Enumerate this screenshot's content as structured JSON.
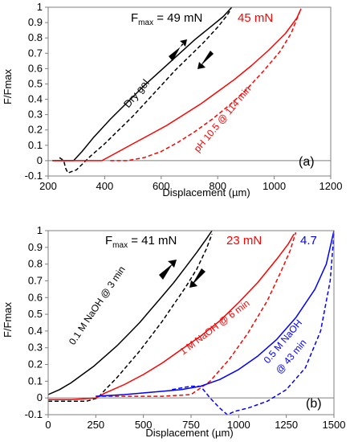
{
  "chart_data": [
    {
      "panel_label": "(a)",
      "type": "line",
      "xlabel": "Displacement (µm)",
      "ylabel": "F/Fmax",
      "xlim": [
        200,
        1200
      ],
      "ylim": [
        -0.1,
        1.0
      ],
      "xticks": [
        200,
        400,
        600,
        800,
        1000,
        1200
      ],
      "yticks": [
        -0.1,
        0,
        0.1,
        0.2,
        0.3,
        0.4,
        0.5,
        0.6,
        0.7,
        0.8,
        0.9,
        1.0
      ],
      "grid": false,
      "annotations": [
        {
          "key": "fmax_label",
          "text": "F",
          "sub": "max",
          "rest": " = 49 mN",
          "color": "#000000"
        },
        {
          "key": "fmax2",
          "text": "45 mN",
          "color": "#ff0000"
        },
        {
          "key": "dry",
          "text": "Dry gel",
          "color": "#000000"
        },
        {
          "key": "ph",
          "text": "pH 10.5 @ 114 min",
          "color": "#ff0000"
        }
      ],
      "series": [
        {
          "color": "#000000",
          "dash": false,
          "x": [
            215,
            255,
            290,
            320,
            360,
            420,
            480,
            540,
            600,
            660,
            720,
            780,
            820,
            850
          ],
          "y": [
            0,
            0,
            0,
            0.06,
            0.15,
            0.27,
            0.38,
            0.49,
            0.59,
            0.69,
            0.79,
            0.88,
            0.94,
            1.0
          ]
        },
        {
          "color": "#000000",
          "dash": true,
          "x": [
            240,
            255,
            262,
            270,
            300,
            350,
            400,
            450,
            500,
            550,
            600,
            650,
            700,
            750,
            800,
            830,
            845
          ],
          "y": [
            0.02,
            0.0,
            -0.05,
            -0.08,
            -0.06,
            0.03,
            0.11,
            0.2,
            0.29,
            0.39,
            0.49,
            0.59,
            0.68,
            0.77,
            0.87,
            0.94,
            0.98
          ]
        },
        {
          "color": "#ff0000",
          "dash": false,
          "x": [
            215,
            300,
            390,
            410,
            450,
            500,
            560,
            620,
            680,
            740,
            800,
            860,
            920,
            980,
            1040,
            1080,
            1095
          ],
          "y": [
            0,
            0,
            0,
            0.02,
            0.06,
            0.11,
            0.17,
            0.23,
            0.3,
            0.37,
            0.45,
            0.53,
            0.62,
            0.72,
            0.83,
            0.93,
            0.99
          ]
        },
        {
          "color": "#ff0000",
          "dash": true,
          "x": [
            420,
            440,
            480,
            540,
            600,
            660,
            720,
            780,
            840,
            900,
            960,
            1020,
            1060,
            1090
          ],
          "y": [
            0,
            0.0,
            0.0,
            0.02,
            0.06,
            0.12,
            0.19,
            0.27,
            0.36,
            0.46,
            0.58,
            0.71,
            0.83,
            0.97
          ]
        }
      ]
    },
    {
      "panel_label": "(b)",
      "type": "line",
      "xlabel": "Displacement (µm)",
      "ylabel": "F/Fmax",
      "xlim": [
        0,
        1500
      ],
      "ylim": [
        -0.1,
        1.0
      ],
      "xticks": [
        0,
        250,
        500,
        750,
        1000,
        1250,
        1500
      ],
      "yticks": [
        -0.1,
        0,
        0.1,
        0.2,
        0.3,
        0.4,
        0.5,
        0.6,
        0.7,
        0.8,
        0.9,
        1.0
      ],
      "grid": false,
      "annotations": [
        {
          "key": "fmax_label",
          "text": "F",
          "sub": "max",
          "rest": " = 41 mN",
          "color": "#000000"
        },
        {
          "key": "fmax2",
          "text": "23 mN",
          "color": "#ff0000"
        },
        {
          "key": "fmax3",
          "text": "4.7",
          "color": "#0000ff"
        },
        {
          "key": "naoh1",
          "text": "0.1 M NaOH @ 3 min",
          "color": "#000000"
        },
        {
          "key": "naoh2",
          "text": "1 M NaOH @ 6 min",
          "color": "#ff0000"
        },
        {
          "key": "naoh3a",
          "text": "0.5 M NaOH",
          "color": "#0000ff"
        },
        {
          "key": "naoh3b",
          "text": "@ 43 min",
          "color": "#0000ff"
        }
      ],
      "series": [
        {
          "color": "#000000",
          "dash": false,
          "x": [
            0,
            60,
            120,
            180,
            240,
            300,
            360,
            420,
            480,
            540,
            600,
            660,
            720,
            780,
            830,
            860
          ],
          "y": [
            0.02,
            0.05,
            0.09,
            0.14,
            0.19,
            0.25,
            0.31,
            0.38,
            0.45,
            0.53,
            0.61,
            0.69,
            0.78,
            0.87,
            0.95,
            1.0
          ]
        },
        {
          "color": "#000000",
          "dash": true,
          "x": [
            0,
            100,
            200,
            260,
            300,
            360,
            420,
            480,
            540,
            600,
            660,
            720,
            780,
            830,
            860
          ],
          "y": [
            -0.02,
            -0.02,
            -0.02,
            0.0,
            0.05,
            0.12,
            0.2,
            0.28,
            0.37,
            0.46,
            0.56,
            0.66,
            0.77,
            0.89,
            0.98
          ]
        },
        {
          "color": "#ff0000",
          "dash": false,
          "x": [
            0,
            120,
            250,
            300,
            400,
            500,
            600,
            700,
            800,
            900,
            1000,
            1100,
            1200,
            1260,
            1290
          ],
          "y": [
            -0.01,
            -0.01,
            0.0,
            0.03,
            0.08,
            0.14,
            0.21,
            0.29,
            0.37,
            0.46,
            0.57,
            0.69,
            0.83,
            0.92,
            0.98
          ]
        },
        {
          "color": "#ff0000",
          "dash": true,
          "x": [
            250,
            400,
            600,
            750,
            850,
            950,
            1050,
            1150,
            1220,
            1270,
            1300
          ],
          "y": [
            0.01,
            0.01,
            0.01,
            0.02,
            0.1,
            0.23,
            0.39,
            0.58,
            0.75,
            0.88,
            0.99
          ]
        },
        {
          "color": "#0000ff",
          "dash": false,
          "x": [
            250,
            400,
            600,
            700,
            800,
            900,
            1000,
            1100,
            1200,
            1300,
            1400,
            1460,
            1500
          ],
          "y": [
            0.01,
            0.02,
            0.04,
            0.05,
            0.07,
            0.11,
            0.17,
            0.25,
            0.35,
            0.48,
            0.65,
            0.8,
            1.0
          ]
        },
        {
          "color": "#0000ff",
          "dash": true,
          "x": [
            650,
            750,
            800,
            850,
            900,
            940,
            980,
            1050,
            1150,
            1250,
            1350,
            1430,
            1480,
            1500
          ],
          "y": [
            0.05,
            0.07,
            0.07,
            0.0,
            -0.06,
            -0.1,
            -0.08,
            -0.06,
            -0.02,
            0.05,
            0.18,
            0.4,
            0.7,
            0.98
          ]
        }
      ]
    }
  ]
}
